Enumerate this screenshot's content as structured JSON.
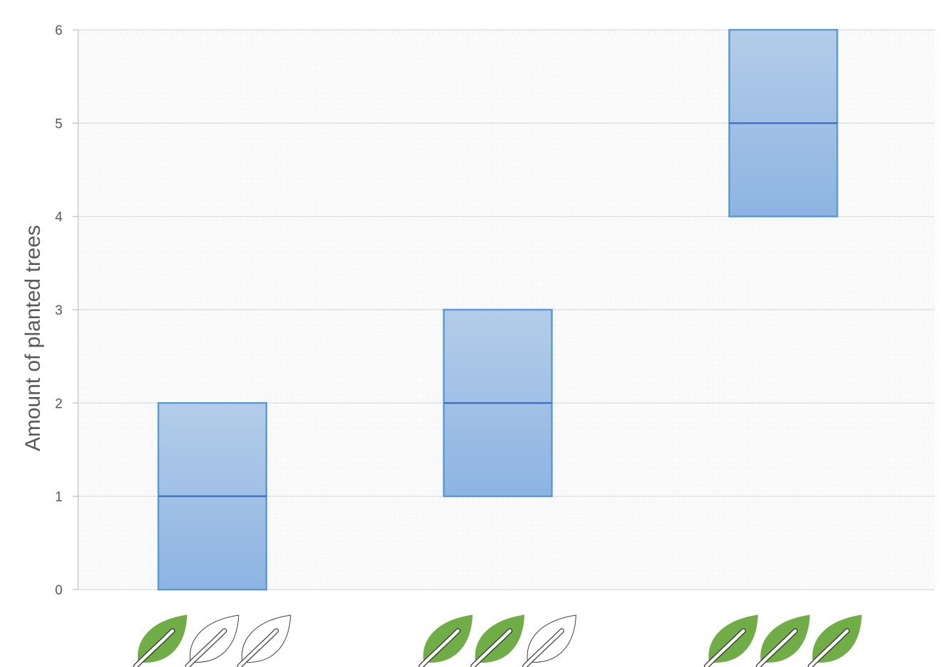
{
  "chart_data": {
    "type": "box",
    "ylabel": "Amount of planted trees",
    "ylim": [
      0,
      6
    ],
    "yticks": [
      "0",
      "1",
      "2",
      "3",
      "4",
      "5",
      "6"
    ],
    "grid": true,
    "categories": [
      {
        "rating": 1,
        "out_of": 3,
        "icon": "leaf-icon",
        "q1": 0,
        "median": 1,
        "q3": 2
      },
      {
        "rating": 2,
        "out_of": 3,
        "icon": "leaf-icon",
        "q1": 1,
        "median": 2,
        "q3": 3
      },
      {
        "rating": 3,
        "out_of": 3,
        "icon": "leaf-icon",
        "q1": 4,
        "median": 5,
        "q3": 6
      }
    ],
    "colors": {
      "box_fill_top": "#b4cce9",
      "box_fill_bottom": "#8db4e2",
      "box_stroke": "#5b9bd5",
      "median_line": "#4472c4",
      "leaf_filled": "#70ad47",
      "leaf_outline": "#404040",
      "grid": "#d9d9d9"
    }
  }
}
